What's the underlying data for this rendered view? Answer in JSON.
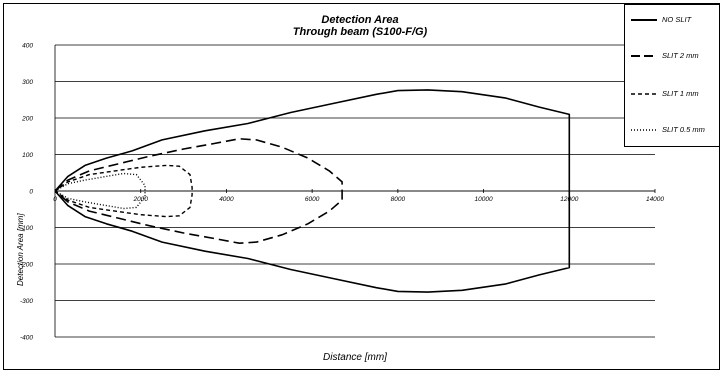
{
  "chart_data": {
    "type": "line",
    "title": "Detection Area",
    "subtitle": "Through beam (S100-F/G)",
    "xlabel": "Distance [mm]",
    "ylabel": "Detection Area [mm]",
    "xlim": [
      0,
      14000
    ],
    "ylim": [
      -400,
      400
    ],
    "xticks": [
      0,
      2000,
      4000,
      6000,
      8000,
      10000,
      12000,
      14000
    ],
    "yticks": [
      400,
      300,
      200,
      100,
      0,
      -100,
      -200,
      -300,
      -400
    ],
    "grid": "horizontal",
    "legend": "top-right",
    "series": [
      {
        "name": "NO SLIT",
        "style": "solid",
        "x": [
          0,
          300,
          700,
          1200,
          1800,
          2500,
          3500,
          4500,
          5500,
          6500,
          7500,
          8000,
          8700,
          9500,
          10500,
          11300,
          12000
        ],
        "y": [
          0,
          40,
          70,
          90,
          110,
          140,
          165,
          185,
          215,
          240,
          265,
          275,
          277,
          272,
          255,
          230,
          210
        ]
      },
      {
        "name": "SLIT 2 mm",
        "style": "long-dash",
        "x": [
          0,
          300,
          800,
          1500,
          2200,
          3000,
          3700,
          4300,
          4700,
          5300,
          5900,
          6400,
          6700
        ],
        "y": [
          0,
          30,
          55,
          75,
          95,
          115,
          130,
          143,
          140,
          120,
          90,
          55,
          25
        ]
      },
      {
        "name": "SLIT 1 mm",
        "style": "short-dash",
        "x": [
          0,
          300,
          800,
          1400,
          2000,
          2600,
          2900,
          3150,
          3200
        ],
        "y": [
          0,
          25,
          45,
          55,
          65,
          70,
          68,
          45,
          10
        ]
      },
      {
        "name": "SLIT 0.5 mm",
        "style": "dotted",
        "x": [
          0,
          300,
          700,
          1200,
          1600,
          1900,
          2100
        ],
        "y": [
          0,
          20,
          30,
          40,
          48,
          45,
          15
        ]
      }
    ]
  }
}
